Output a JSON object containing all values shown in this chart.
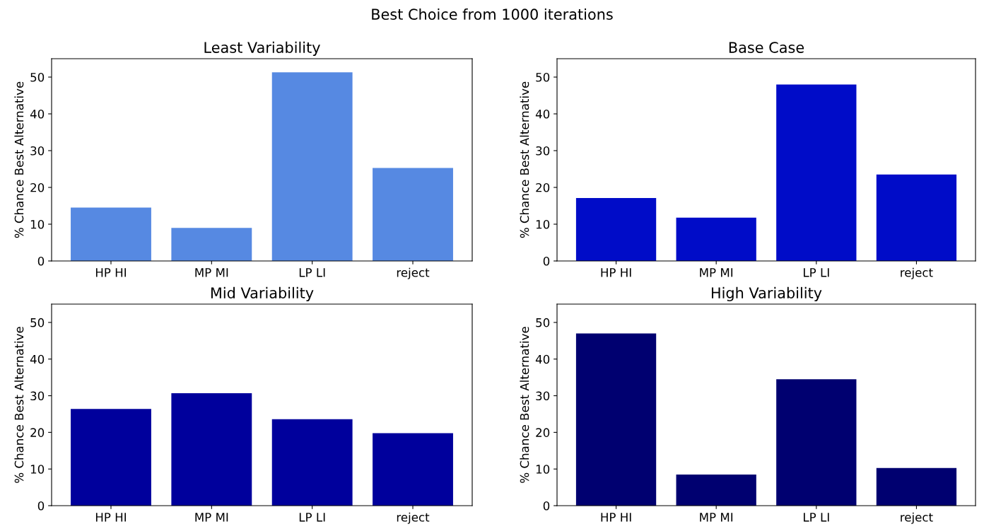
{
  "chart_data": [
    {
      "type": "bar",
      "title": "Least Variability",
      "ylabel": "% Chance Best Alternative",
      "annotations": [
        "Best Choice from 1000 iterations"
      ],
      "categories": [
        "HP HI",
        "MP MI",
        "LP LI",
        "reject"
      ],
      "values": [
        14.5,
        9.0,
        51.3,
        25.3
      ],
      "color": "#5689e2",
      "ylim": [
        0,
        55
      ],
      "yticks": [
        0,
        10,
        20,
        30,
        40,
        50
      ],
      "grid": false
    },
    {
      "type": "bar",
      "title": "Base Case",
      "ylabel": "% Chance Best Alternative",
      "categories": [
        "HP HI",
        "MP MI",
        "LP LI",
        "reject"
      ],
      "values": [
        17.1,
        11.8,
        48.0,
        23.5
      ],
      "color": "#000cc8",
      "ylim": [
        0,
        55
      ],
      "yticks": [
        0,
        10,
        20,
        30,
        40,
        50
      ],
      "grid": false
    },
    {
      "type": "bar",
      "title": "Mid Variability",
      "ylabel": "% Chance Best Alternative",
      "categories": [
        "HP HI",
        "MP MI",
        "LP LI",
        "reject"
      ],
      "values": [
        26.4,
        30.7,
        23.6,
        19.8
      ],
      "color": "#00009c",
      "ylim": [
        0,
        55
      ],
      "yticks": [
        0,
        10,
        20,
        30,
        40,
        50
      ],
      "grid": false
    },
    {
      "type": "bar",
      "title": "High Variability",
      "ylabel": "% Chance Best Alternative",
      "categories": [
        "HP HI",
        "MP MI",
        "LP LI",
        "reject"
      ],
      "values": [
        47.0,
        8.5,
        34.5,
        10.3
      ],
      "color": "#000070",
      "ylim": [
        0,
        55
      ],
      "yticks": [
        0,
        10,
        20,
        30,
        40,
        50
      ],
      "grid": false
    }
  ]
}
